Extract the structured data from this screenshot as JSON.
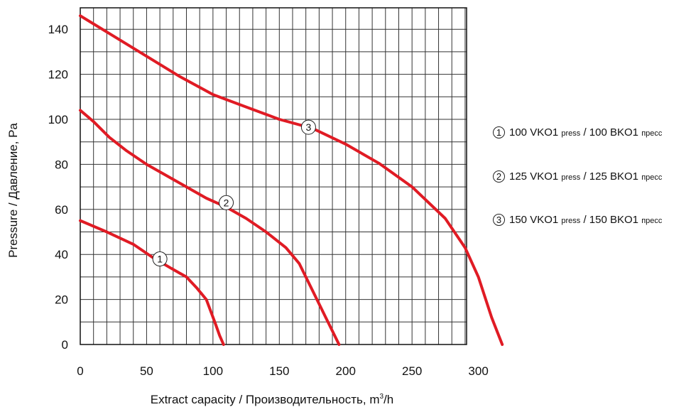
{
  "chart_data": {
    "type": "line",
    "xlabel": "Extract capacity / Производительность, m",
    "xlabel_sup": "3",
    "xlabel_unit": "/h",
    "ylabel": "Pressure / Давление, Pa",
    "xlim": [
      0,
      325
    ],
    "ylim": [
      0,
      148
    ],
    "x_ticks": [
      0,
      50,
      100,
      150,
      200,
      250,
      300
    ],
    "y_ticks": [
      0,
      20,
      40,
      60,
      80,
      100,
      120,
      140
    ],
    "grid": true,
    "line_color": "#e01b24",
    "series": [
      {
        "marker": "1",
        "x": [
          0,
          20,
          40,
          55,
          68,
          80,
          88,
          95,
          102,
          105,
          108
        ],
        "y": [
          55,
          50,
          44.5,
          38.5,
          34,
          30,
          25,
          20,
          9,
          4,
          0
        ],
        "marker_at": [
          60,
          38
        ]
      },
      {
        "marker": "2",
        "x": [
          0,
          10,
          22,
          35,
          50,
          65,
          80,
          95,
          110,
          125,
          140,
          155,
          165,
          175,
          185,
          195
        ],
        "y": [
          104,
          99,
          92,
          86,
          80,
          75,
          70,
          65,
          61,
          56,
          50,
          43,
          36,
          24,
          12,
          0
        ],
        "marker_at": [
          110,
          63
        ]
      },
      {
        "marker": "3",
        "x": [
          0,
          25,
          50,
          75,
          100,
          125,
          150,
          175,
          200,
          225,
          250,
          275,
          290,
          300,
          310,
          318
        ],
        "y": [
          146,
          137,
          128,
          119,
          111,
          105.5,
          100,
          96,
          89,
          80.5,
          70,
          56,
          43,
          30,
          12,
          0
        ],
        "marker_at": [
          172,
          96.5
        ]
      }
    ],
    "legend": [
      {
        "num": "1",
        "name": "100 VKO1",
        "small1": "press",
        "mid": "/ 100 BKO1",
        "small2": "пресс"
      },
      {
        "num": "2",
        "name": "125 VKO1",
        "small1": "press",
        "mid": "/ 125 BKO1",
        "small2": "пресс"
      },
      {
        "num": "3",
        "name": "150 VKO1",
        "small1": "press",
        "mid": "/ 150 BKO1",
        "small2": "пресс"
      }
    ]
  }
}
